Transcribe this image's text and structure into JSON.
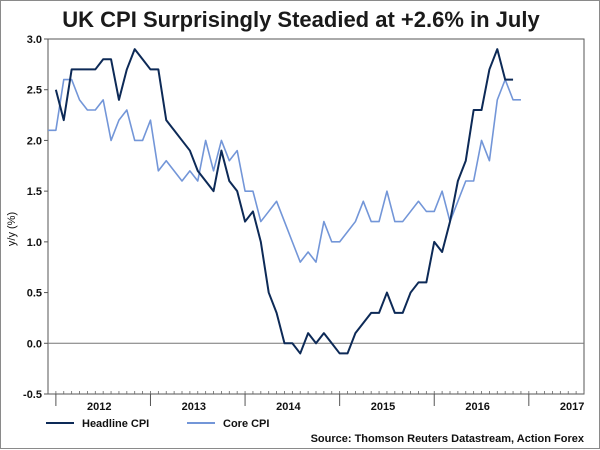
{
  "chart_data": {
    "type": "line",
    "title": "UK CPI Surprisingly Steadied at +2.6% in July",
    "ylabel": "y/y (%)",
    "xlabel": "",
    "ylim": [
      -0.5,
      3.0
    ],
    "yticks": [
      "3.0",
      "2.5",
      "2.0",
      "1.5",
      "1.0",
      "0.5",
      "0.0",
      "-0.5"
    ],
    "ytick_values": [
      3.0,
      2.5,
      2.0,
      1.5,
      1.0,
      0.5,
      0.0,
      -0.5
    ],
    "x_start": "2011-12",
    "x_end": "2017-08",
    "year_labels": [
      {
        "label": "2012",
        "pos": 6.5
      },
      {
        "label": "2013",
        "pos": 18.5
      },
      {
        "label": "2014",
        "pos": 30.5
      },
      {
        "label": "2015",
        "pos": 42.5
      },
      {
        "label": "2016",
        "pos": 54.5
      },
      {
        "label": "2017",
        "pos": 66.5
      }
    ],
    "year_boundaries": [
      1,
      13,
      25,
      37,
      49,
      61
    ],
    "zero_line": 0.0,
    "series": [
      {
        "name": "Headline CPI",
        "color": "#0d2a57",
        "values": [
          2.5,
          2.2,
          2.7,
          2.7,
          2.7,
          2.7,
          2.8,
          2.8,
          2.4,
          2.7,
          2.9,
          2.8,
          2.7,
          2.7,
          2.2,
          2.1,
          2.0,
          1.9,
          1.7,
          1.6,
          1.5,
          1.9,
          1.6,
          1.5,
          1.2,
          1.3,
          1.0,
          0.5,
          0.3,
          0.0,
          0.0,
          -0.1,
          0.1,
          0.0,
          0.1,
          0.0,
          -0.1,
          -0.1,
          0.1,
          0.2,
          0.3,
          0.3,
          0.5,
          0.3,
          0.3,
          0.5,
          0.6,
          0.6,
          1.0,
          0.9,
          1.2,
          1.6,
          1.8,
          2.3,
          2.3,
          2.7,
          2.9,
          2.6,
          2.6
        ]
      },
      {
        "name": "Core CPI",
        "color": "#7396d8",
        "values": [
          2.1,
          2.1,
          2.6,
          2.6,
          2.4,
          2.3,
          2.3,
          2.4,
          2.0,
          2.2,
          2.3,
          2.0,
          2.0,
          2.2,
          1.7,
          1.8,
          1.7,
          1.6,
          1.7,
          1.6,
          2.0,
          1.7,
          2.0,
          1.8,
          1.9,
          1.5,
          1.5,
          1.2,
          1.3,
          1.4,
          1.2,
          1.0,
          0.8,
          0.9,
          0.8,
          1.2,
          1.0,
          1.0,
          1.1,
          1.2,
          1.4,
          1.2,
          1.2,
          1.5,
          1.2,
          1.2,
          1.3,
          1.4,
          1.3,
          1.3,
          1.5,
          1.2,
          1.4,
          1.6,
          1.6,
          2.0,
          1.8,
          2.4,
          2.6,
          2.4,
          2.4
        ]
      }
    ],
    "series_start_index": [
      1,
      0
    ],
    "legend": [
      {
        "label": "Headline CPI",
        "color": "#0d2a57"
      },
      {
        "label": "Core CPI",
        "color": "#7396d8"
      }
    ],
    "source": "Source: Thomson Reuters Datastream, Action Forex"
  }
}
